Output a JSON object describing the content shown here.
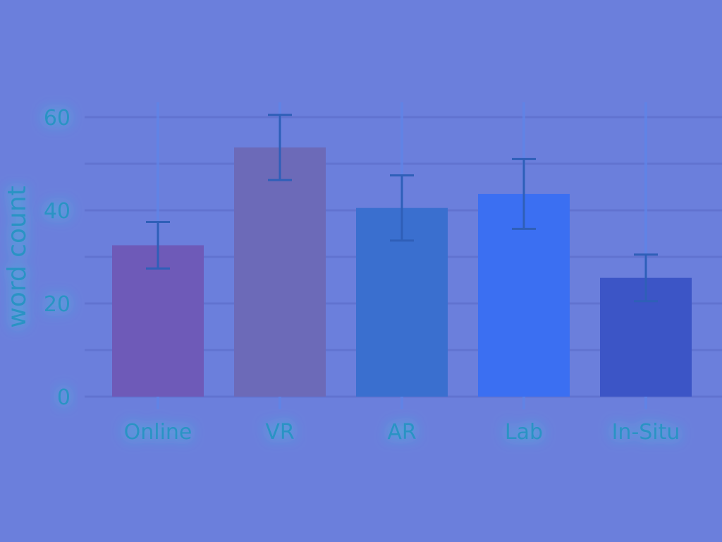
{
  "chart_data": {
    "type": "bar",
    "title": "",
    "xlabel": "",
    "ylabel": "word count",
    "categories": [
      "Online",
      "VR",
      "AR",
      "Lab",
      "In-Situ"
    ],
    "values": [
      32.5,
      53.5,
      40.5,
      43.5,
      25.5
    ],
    "error": [
      5,
      7,
      7,
      7.5,
      5
    ],
    "ylim": [
      0,
      63
    ],
    "yticks": [
      0,
      20,
      40,
      60
    ],
    "grid": true,
    "legend": "none",
    "bar_colors": [
      "#6e5ab8",
      "#6c6ab8",
      "#3a6fcf",
      "#3b6ff2",
      "#3c55c6"
    ],
    "background": "#6b7fdc",
    "grid_color": "#6173d0",
    "text_color": "#2a93c4",
    "errorbar_color": "#2f5fb8"
  }
}
